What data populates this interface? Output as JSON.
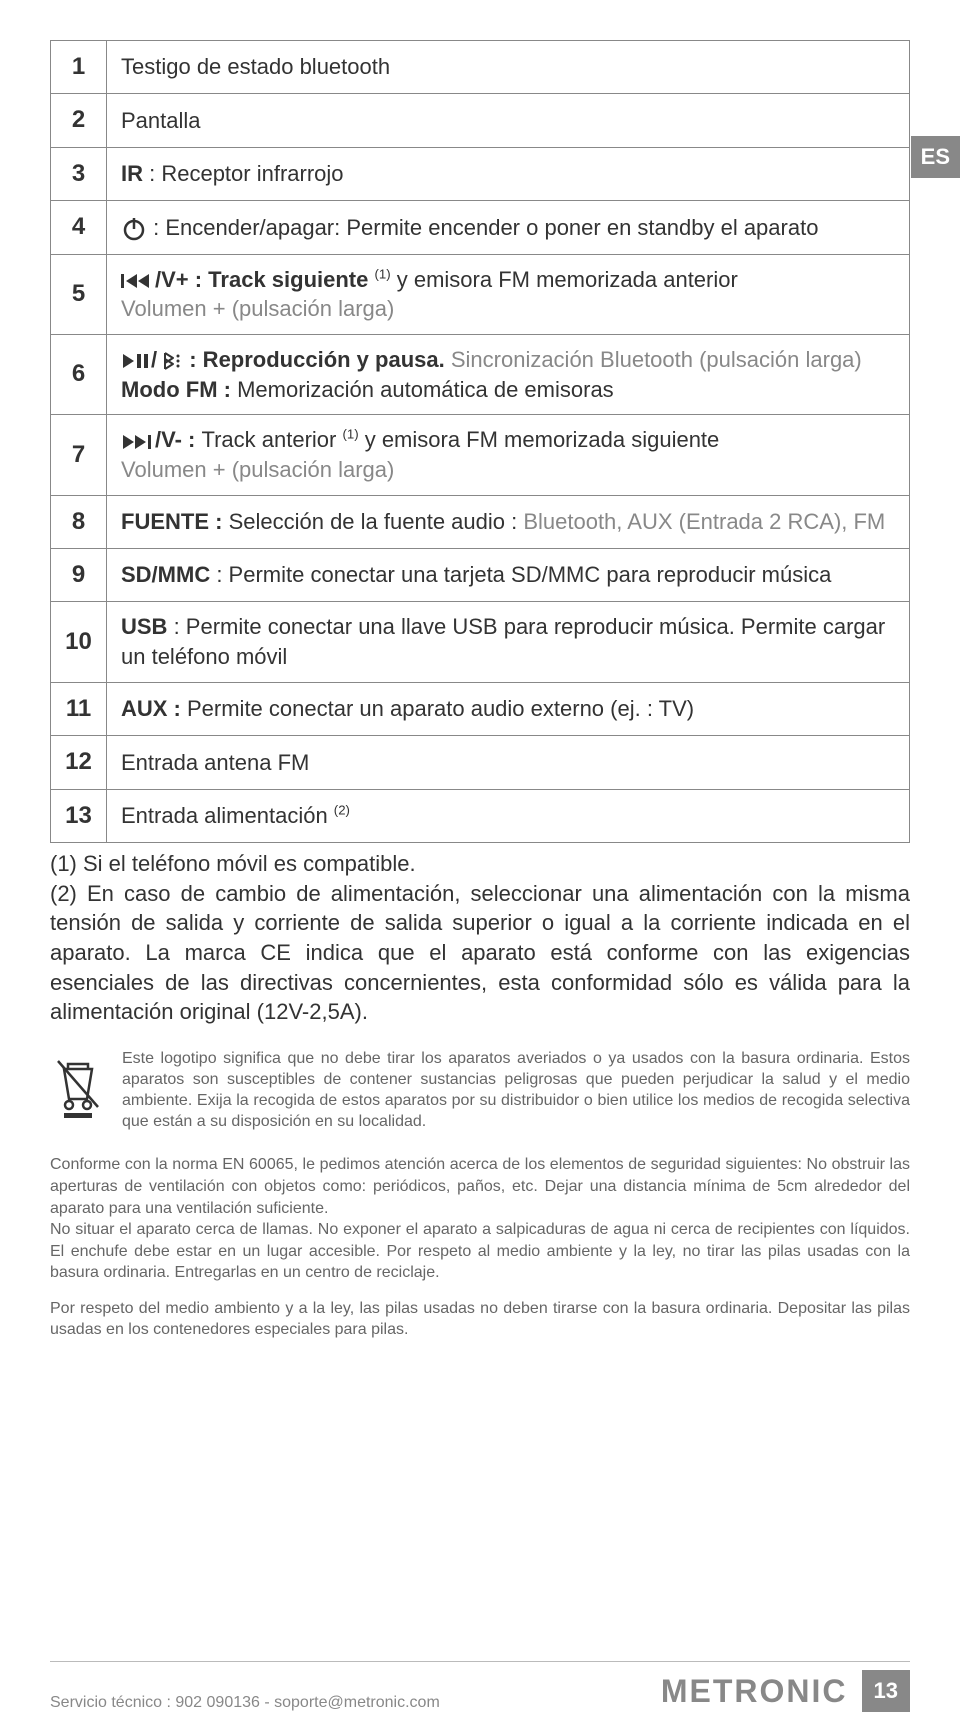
{
  "lang_tab": "ES",
  "table": {
    "rows": [
      {
        "num": "1",
        "content": [
          {
            "t": "Testigo de estado bluetooth"
          }
        ]
      },
      {
        "num": "2",
        "content": [
          {
            "t": "Pantalla"
          }
        ]
      },
      {
        "num": "3",
        "content": [
          {
            "t": "IR",
            "bold": true
          },
          {
            "t": " : Receptor infrarrojo"
          }
        ]
      },
      {
        "num": "4",
        "content": [
          {
            "icon": "power"
          },
          {
            "t": " : Encender/apagar: Permite encender o poner en standby el aparato"
          }
        ]
      },
      {
        "num": "5",
        "content": [
          {
            "icon": "prev-track"
          },
          {
            "t": "/V+ : Track siguiente ",
            "bold": true
          },
          {
            "t": "(1)",
            "sup": true
          },
          {
            "t": " y emisora FM memorizada anterior"
          },
          {
            "br": true
          },
          {
            "t": "Volumen + (pulsación larga)",
            "gray": true
          }
        ]
      },
      {
        "num": "6",
        "content": [
          {
            "icon": "play-pause"
          },
          {
            "t": "/",
            "bold": true
          },
          {
            "icon": "bt-dots"
          },
          {
            "t": " : Reproducción y pausa. ",
            "bold": true
          },
          {
            "t": "Sincronización Bluetooth (pulsación larga)",
            "gray": true
          },
          {
            "br": true
          },
          {
            "t": "Modo FM : ",
            "bold": true
          },
          {
            "t": "Memorización automática de emisoras"
          }
        ]
      },
      {
        "num": "7",
        "content": [
          {
            "icon": "next-track"
          },
          {
            "t": "/V- : ",
            "bold": true
          },
          {
            "t": "Track anterior "
          },
          {
            "t": "(1)",
            "sup": true
          },
          {
            "t": " y emisora FM memorizada siguiente"
          },
          {
            "br": true
          },
          {
            "t": "Volumen + (pulsación larga)",
            "gray": true
          }
        ]
      },
      {
        "num": "8",
        "content": [
          {
            "t": "FUENTE : ",
            "bold": true
          },
          {
            "t": "Selección de la fuente audio : "
          },
          {
            "t": "Bluetooth, AUX (Entrada 2 RCA), FM",
            "gray": true
          }
        ]
      },
      {
        "num": "9",
        "content": [
          {
            "t": "SD/MMC",
            "bold": true
          },
          {
            "t": " : Permite conectar una tarjeta SD/MMC para reproducir música"
          }
        ]
      },
      {
        "num": "10",
        "content": [
          {
            "t": "USB",
            "bold": true
          },
          {
            "t": " : Permite conectar una llave USB para reproducir música. Permite cargar un teléfono móvil"
          }
        ]
      },
      {
        "num": "11",
        "content": [
          {
            "t": "AUX : ",
            "bold": true
          },
          {
            "t": " Permite conectar un aparato audio externo (ej. : TV)"
          }
        ]
      },
      {
        "num": "12",
        "content": [
          {
            "t": "Entrada antena FM"
          }
        ]
      },
      {
        "num": "13",
        "content": [
          {
            "t": "Entrada alimentación "
          },
          {
            "t": "(2)",
            "sup": true
          }
        ]
      }
    ]
  },
  "notes": "(1) Si el teléfono móvil es compatible.\n(2) En caso de cambio de alimentación, seleccionar una alimentación con la misma tensión de salida y corriente de salida superior o igual a la corriente indicada en el aparato. La marca CE indica que el aparato está conforme con las exigencias esenciales de las directivas concernientes, esta conformidad sólo es válida para la alimentación original (12V-2,5A).",
  "weee_text": "Este logotipo significa que no debe tirar los aparatos averiados o ya usados con la basura ordinaria. Estos aparatos son susceptibles de contener sustancias peligrosas que pueden perjudicar la salud y el medio ambiente. Exija la recogida de estos aparatos por su distribuidor o bien utilice los medios de recogida selectiva que están a su disposición en su localidad.",
  "safety": "Conforme con la norma EN 60065, le pedimos atención acerca de los elementos de seguridad siguientes: No obstruir las aperturas de ventilación con objetos como: periódicos, paños, etc. Dejar una distancia mínima de 5cm alrededor del aparato para una ventilación suficiente.\nNo situar el aparato cerca de llamas. No exponer el aparato a salpicaduras de agua ni cerca de recipientes con líquidos. El enchufe debe estar en un lugar accesible. Por respeto al medio ambiente y la ley, no tirar las pilas usadas con la basura ordinaria. Entregarlas en un centro de reciclaje.",
  "battery_note": "Por respeto del medio ambiento y a la ley, las pilas usadas no deben tirarse con la basura ordinaria. Depositar las pilas usadas en los contenedores especiales para pilas.",
  "footer": {
    "service": "Servicio técnico : 902 090136 - soporte@metronic.com",
    "brand": "METRONIC",
    "page": "13"
  },
  "colors": {
    "text": "#333333",
    "muted": "#888888",
    "border": "#888888",
    "tab_bg": "#888888",
    "tab_fg": "#ffffff"
  }
}
